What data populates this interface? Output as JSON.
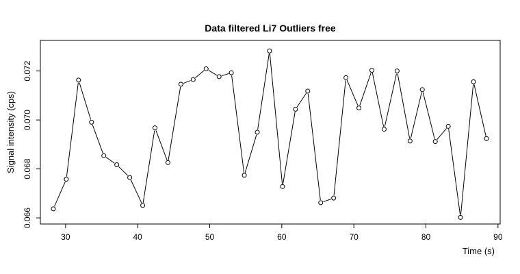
{
  "chart_data": {
    "type": "scatter",
    "title": "Data filtered Li7 Outliers free",
    "xlabel": "Time (s)",
    "ylabel": "Signal intensity (cps)",
    "xlim": [
      26.5,
      90.3
    ],
    "ylim": [
      0.06575,
      0.07325
    ],
    "x_ticks": [
      30,
      40,
      50,
      60,
      70,
      80,
      90
    ],
    "y_ticks": [
      0.066,
      0.068,
      0.07,
      0.072
    ],
    "x_tick_labels": [
      "30",
      "40",
      "50",
      "60",
      "70",
      "80",
      "90"
    ],
    "y_tick_labels": [
      "0.066",
      "0.068",
      "0.070",
      "0.072"
    ],
    "grid": false,
    "legend": "none",
    "series_style": "points-connected-by-lines",
    "x": [
      28.3,
      30.1,
      31.8,
      33.6,
      35.3,
      37.1,
      38.9,
      40.7,
      42.4,
      44.2,
      46.0,
      47.7,
      49.5,
      51.3,
      53.0,
      54.8,
      56.6,
      58.3,
      60.1,
      61.9,
      63.6,
      65.4,
      67.2,
      68.9,
      70.7,
      72.5,
      74.2,
      76.0,
      77.8,
      79.5,
      81.3,
      83.1,
      84.8,
      86.6,
      88.4
    ],
    "y": [
      0.06637,
      0.06758,
      0.07163,
      0.06991,
      0.06854,
      0.06817,
      0.06765,
      0.06651,
      0.06968,
      0.06826,
      0.07146,
      0.07165,
      0.07209,
      0.07177,
      0.07193,
      0.06774,
      0.0695,
      0.07282,
      0.06728,
      0.07044,
      0.07118,
      0.06662,
      0.06681,
      0.07173,
      0.07049,
      0.07203,
      0.06962,
      0.072,
      0.06914,
      0.07124,
      0.06912,
      0.06974,
      0.06602,
      0.07156,
      0.06924
    ]
  }
}
